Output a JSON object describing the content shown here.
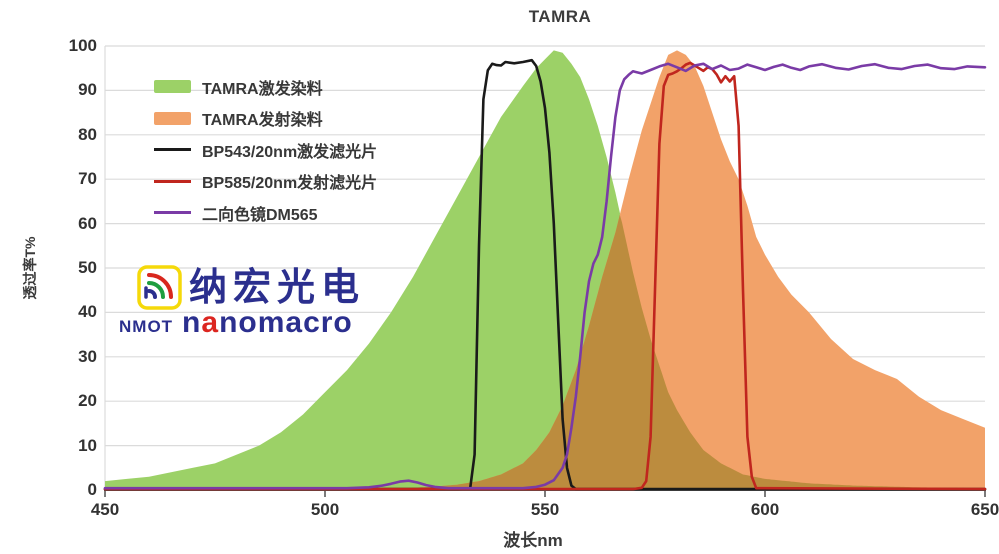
{
  "page": {
    "title": "TAMRA"
  },
  "watermark": {
    "company_cn": "纳宏光电",
    "abbr": "NMOT",
    "brand_prefix": "n",
    "brand_accent": "a",
    "brand_suffix": "nomacro",
    "icon": "rainbow-arcs-in-yellow-rounded-square",
    "icon_colors": {
      "border_yellow": "#f5d90a",
      "arc_red": "#d8271e",
      "arc_green": "#1e9e40",
      "arc_navy": "#2b2f8e"
    },
    "text_navy": "#2b2f8e",
    "accent_red": "#dc2620"
  },
  "chart_data": {
    "type": "line",
    "title": "TAMRA",
    "xlabel": "波长nm",
    "ylabel": "透过率T%",
    "xlim": [
      450,
      650
    ],
    "ylim": [
      0,
      100
    ],
    "x_ticks": [
      450,
      500,
      550,
      600,
      650
    ],
    "y_ticks": [
      0,
      10,
      20,
      30,
      40,
      50,
      60,
      70,
      80,
      90,
      100
    ],
    "grid": "horizontal-only",
    "grid_color": "#dbdbdb",
    "axis_color": "#4f4f4f",
    "legend_position": "top-left-inside",
    "overlap_fill": "#bc8c3e",
    "series": [
      {
        "name": "TAMRA激发染料",
        "type": "area",
        "color": "#9cd167",
        "points": [
          [
            450,
            2
          ],
          [
            455,
            2.5
          ],
          [
            460,
            3
          ],
          [
            465,
            4
          ],
          [
            470,
            5
          ],
          [
            475,
            6
          ],
          [
            480,
            8
          ],
          [
            485,
            10
          ],
          [
            490,
            13
          ],
          [
            495,
            17
          ],
          [
            500,
            22
          ],
          [
            505,
            27
          ],
          [
            510,
            33
          ],
          [
            515,
            40
          ],
          [
            520,
            48
          ],
          [
            525,
            57
          ],
          [
            530,
            66
          ],
          [
            535,
            75
          ],
          [
            540,
            84
          ],
          [
            545,
            91
          ],
          [
            548,
            95
          ],
          [
            550,
            97
          ],
          [
            552,
            99
          ],
          [
            554,
            98.5
          ],
          [
            556,
            96
          ],
          [
            558,
            93
          ],
          [
            560,
            88
          ],
          [
            562,
            82
          ],
          [
            564,
            75
          ],
          [
            566,
            67
          ],
          [
            568,
            58
          ],
          [
            570,
            49
          ],
          [
            572,
            41
          ],
          [
            574,
            34
          ],
          [
            576,
            28
          ],
          [
            578,
            22
          ],
          [
            580,
            18
          ],
          [
            583,
            13
          ],
          [
            586,
            9
          ],
          [
            590,
            6
          ],
          [
            595,
            3.5
          ],
          [
            600,
            2.5
          ],
          [
            605,
            2
          ],
          [
            610,
            1.5
          ],
          [
            620,
            1
          ],
          [
            635,
            0.6
          ],
          [
            650,
            0.4
          ]
        ]
      },
      {
        "name": "TAMRA发射染料",
        "type": "area",
        "color": "#f2a269",
        "points": [
          [
            512,
            0.2
          ],
          [
            518,
            0.4
          ],
          [
            524,
            0.7
          ],
          [
            530,
            1.2
          ],
          [
            535,
            2
          ],
          [
            540,
            3.5
          ],
          [
            545,
            6
          ],
          [
            548,
            9
          ],
          [
            551,
            13
          ],
          [
            554,
            19
          ],
          [
            557,
            27
          ],
          [
            560,
            37
          ],
          [
            563,
            48
          ],
          [
            566,
            58
          ],
          [
            569,
            70
          ],
          [
            572,
            81
          ],
          [
            574,
            87
          ],
          [
            576,
            93
          ],
          [
            578,
            98
          ],
          [
            580,
            99
          ],
          [
            582,
            98
          ],
          [
            584,
            95.5
          ],
          [
            586,
            91
          ],
          [
            588,
            85
          ],
          [
            590,
            79
          ],
          [
            592,
            74
          ],
          [
            594,
            70
          ],
          [
            596,
            64
          ],
          [
            598,
            57
          ],
          [
            600,
            53
          ],
          [
            603,
            48
          ],
          [
            606,
            44
          ],
          [
            610,
            40
          ],
          [
            615,
            34
          ],
          [
            620,
            29.5
          ],
          [
            625,
            27
          ],
          [
            630,
            25
          ],
          [
            635,
            21
          ],
          [
            640,
            18
          ],
          [
            645,
            16
          ],
          [
            650,
            14
          ]
        ]
      },
      {
        "name": "BP543/20nm激发滤光片",
        "type": "line",
        "color": "#1a1a1a",
        "points": [
          [
            450,
            0.2
          ],
          [
            530,
            0.2
          ],
          [
            533,
            0.4
          ],
          [
            534,
            8
          ],
          [
            535,
            55
          ],
          [
            536,
            88
          ],
          [
            537,
            94.5
          ],
          [
            538,
            96
          ],
          [
            539,
            95.7
          ],
          [
            540,
            95.6
          ],
          [
            541,
            96.4
          ],
          [
            543,
            96.1
          ],
          [
            545,
            96.4
          ],
          [
            547,
            96.8
          ],
          [
            548,
            95.5
          ],
          [
            549,
            92
          ],
          [
            550,
            86
          ],
          [
            551,
            76
          ],
          [
            552,
            60
          ],
          [
            553,
            38
          ],
          [
            554,
            16
          ],
          [
            555,
            5
          ],
          [
            556,
            1
          ],
          [
            557,
            0.2
          ],
          [
            650,
            0.2
          ]
        ]
      },
      {
        "name": "BP585/20nm发射滤光片",
        "type": "line",
        "color": "#c0261e",
        "points": [
          [
            450,
            0.2
          ],
          [
            570,
            0.2
          ],
          [
            572,
            0.5
          ],
          [
            573,
            2
          ],
          [
            574,
            12
          ],
          [
            575,
            45
          ],
          [
            576,
            78
          ],
          [
            577,
            91
          ],
          [
            578,
            93.5
          ],
          [
            579,
            93.8
          ],
          [
            580,
            94.3
          ],
          [
            581,
            95
          ],
          [
            582,
            95.8
          ],
          [
            583,
            96.2
          ],
          [
            584,
            95.6
          ],
          [
            585,
            95
          ],
          [
            586,
            94.4
          ],
          [
            587,
            95.2
          ],
          [
            588,
            94.8
          ],
          [
            589,
            93.6
          ],
          [
            590,
            91.8
          ],
          [
            591,
            93.2
          ],
          [
            592,
            92
          ],
          [
            593,
            93.2
          ],
          [
            594,
            82
          ],
          [
            595,
            45
          ],
          [
            596,
            12
          ],
          [
            597,
            3
          ],
          [
            598,
            0.4
          ],
          [
            650,
            0.2
          ]
        ]
      },
      {
        "name": "二向色镜DM565",
        "type": "line",
        "color": "#7a3ba6",
        "points": [
          [
            450,
            0.4
          ],
          [
            505,
            0.4
          ],
          [
            510,
            0.6
          ],
          [
            513,
            1
          ],
          [
            515,
            1.4
          ],
          [
            517,
            1.9
          ],
          [
            519,
            2.1
          ],
          [
            521,
            1.7
          ],
          [
            523,
            1.1
          ],
          [
            525,
            0.7
          ],
          [
            528,
            0.4
          ],
          [
            545,
            0.4
          ],
          [
            548,
            0.7
          ],
          [
            550,
            1.2
          ],
          [
            552,
            2.2
          ],
          [
            554,
            5
          ],
          [
            555,
            8
          ],
          [
            556,
            14
          ],
          [
            557,
            21
          ],
          [
            558,
            30
          ],
          [
            559,
            40
          ],
          [
            560,
            47
          ],
          [
            561,
            51
          ],
          [
            562,
            53
          ],
          [
            563,
            57
          ],
          [
            564,
            65
          ],
          [
            565,
            75
          ],
          [
            566,
            84
          ],
          [
            567,
            90
          ],
          [
            568,
            92.5
          ],
          [
            569,
            93.5
          ],
          [
            570,
            94.3
          ],
          [
            572,
            93.8
          ],
          [
            574,
            94.6
          ],
          [
            576,
            95.4
          ],
          [
            578,
            96
          ],
          [
            580,
            95.2
          ],
          [
            582,
            94.4
          ],
          [
            584,
            95.6
          ],
          [
            586,
            96
          ],
          [
            588,
            94.8
          ],
          [
            590,
            95.6
          ],
          [
            592,
            94.6
          ],
          [
            594,
            94.9
          ],
          [
            596,
            95.8
          ],
          [
            598,
            95.2
          ],
          [
            600,
            94.6
          ],
          [
            602,
            95.3
          ],
          [
            604,
            95.8
          ],
          [
            606,
            95.1
          ],
          [
            608,
            94.6
          ],
          [
            610,
            95.4
          ],
          [
            613,
            95.9
          ],
          [
            616,
            95.1
          ],
          [
            619,
            94.7
          ],
          [
            622,
            95.5
          ],
          [
            625,
            95.9
          ],
          [
            628,
            95.1
          ],
          [
            631,
            94.8
          ],
          [
            634,
            95.5
          ],
          [
            637,
            95.8
          ],
          [
            640,
            95
          ],
          [
            643,
            94.8
          ],
          [
            646,
            95.4
          ],
          [
            650,
            95.2
          ]
        ]
      }
    ]
  }
}
